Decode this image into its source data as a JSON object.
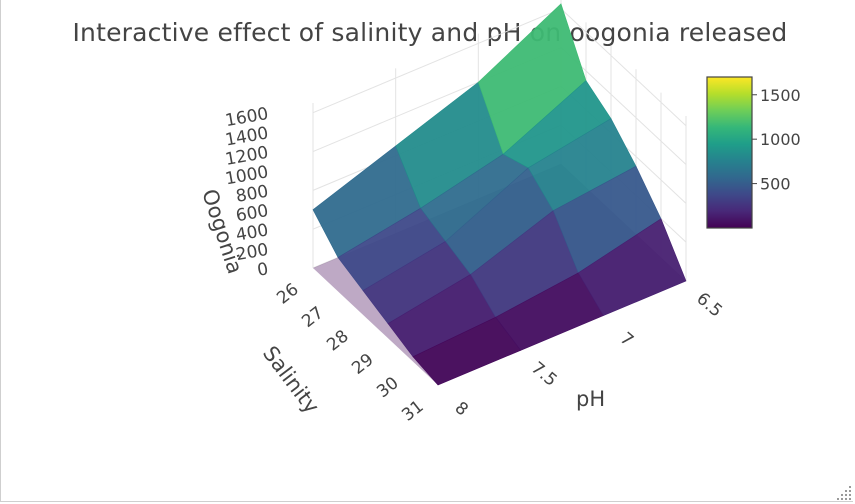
{
  "chart_data": {
    "type": "surface",
    "title": "Interactive effect of salinity and pH on oogonia released",
    "x_axis": {
      "label": "Salinity",
      "ticks": [
        "26",
        "27",
        "28",
        "29",
        "30",
        "31"
      ],
      "range": [
        26,
        31
      ]
    },
    "y_axis": {
      "label": "pH",
      "ticks": [
        "6.5",
        "7",
        "7.5",
        "8"
      ],
      "range": [
        6.5,
        8
      ]
    },
    "z_axis": {
      "label": "Oogonia",
      "ticks": [
        "0",
        "200",
        "400",
        "600",
        "800",
        "1000",
        "1200",
        "1400",
        "1600"
      ],
      "range": [
        0,
        1700
      ]
    },
    "colorbar": {
      "ticks": [
        "500",
        "1000",
        "1500"
      ],
      "tick_values": [
        500,
        1000,
        1500
      ],
      "range": [
        0,
        1700
      ]
    },
    "colorscale": "Viridis",
    "colorscale_stops": [
      "#440154",
      "#482878",
      "#3e4989",
      "#31688e",
      "#26828e",
      "#1f9e89",
      "#35b779",
      "#6ece58",
      "#b5de2b",
      "#fde725"
    ],
    "grid": true,
    "z_values_description_points": {
      "salinity": [
        26,
        26,
        26,
        26,
        27,
        27,
        27,
        27,
        28,
        28,
        28,
        28,
        29,
        29,
        29,
        29,
        30,
        30,
        30,
        30,
        31,
        31,
        31,
        31
      ],
      "pH": [
        6.5,
        7,
        7.5,
        8,
        6.5,
        7,
        7.5,
        8,
        6.5,
        7,
        7.5,
        8,
        6.5,
        7,
        7.5,
        8,
        6.5,
        7,
        7.5,
        8,
        6.5,
        7,
        7.5,
        8
      ],
      "oogonia": [
        1650,
        1200,
        900,
        600,
        1100,
        700,
        500,
        350,
        950,
        800,
        400,
        250,
        700,
        600,
        300,
        150,
        400,
        200,
        100,
        50,
        0,
        0,
        0,
        0
      ]
    }
  }
}
